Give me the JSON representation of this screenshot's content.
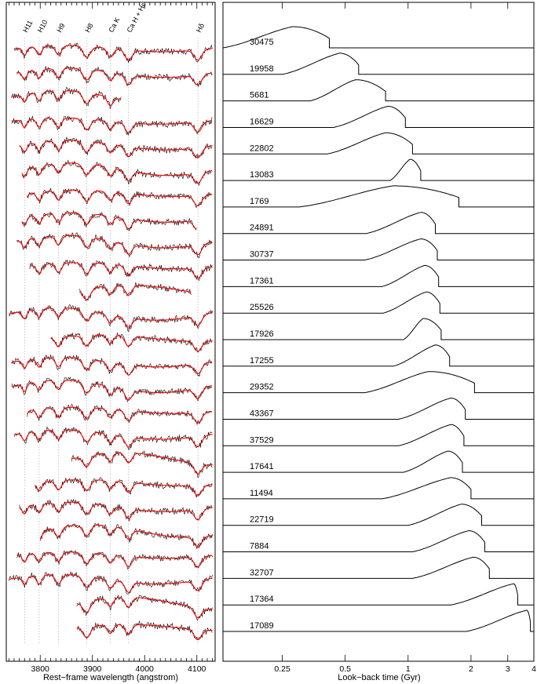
{
  "chart_data": [
    {
      "type": "line",
      "panel": "left",
      "xlabel": "Rest−frame wavelength (angstrom)",
      "xlim": [
        3735,
        4135
      ],
      "xticks": [
        3800,
        3900,
        4000,
        4100
      ],
      "xtick_labels": [
        "3800",
        "3900",
        "4000",
        "4100"
      ],
      "line_markers": [
        {
          "label": "H11",
          "wavelength": 3770
        },
        {
          "label": "H10",
          "wavelength": 3798
        },
        {
          "label": "H9",
          "wavelength": 3835
        },
        {
          "label": "H8",
          "wavelength": 3889
        },
        {
          "label": "Ca K",
          "wavelength": 3934
        },
        {
          "label": "Ca H + Hε",
          "wavelength": 3969
        },
        {
          "label": "Hδ",
          "wavelength": 4102
        }
      ],
      "spectra": [
        {
          "start": 3750,
          "end": 4130
        },
        {
          "start": 3755,
          "end": 4130
        },
        {
          "start": 3745,
          "end": 3955
        },
        {
          "start": 3745,
          "end": 4130
        },
        {
          "start": 3760,
          "end": 4130
        },
        {
          "start": 3765,
          "end": 4130
        },
        {
          "start": 3775,
          "end": 4130
        },
        {
          "start": 3765,
          "end": 4100
        },
        {
          "start": 3755,
          "end": 4130
        },
        {
          "start": 3780,
          "end": 4130
        },
        {
          "start": 3875,
          "end": 4090
        },
        {
          "start": 3740,
          "end": 4130
        },
        {
          "start": 3820,
          "end": 4130
        },
        {
          "start": 3745,
          "end": 4130
        },
        {
          "start": 3745,
          "end": 4130
        },
        {
          "start": 3775,
          "end": 4130
        },
        {
          "start": 3750,
          "end": 4130
        },
        {
          "start": 3860,
          "end": 4130
        },
        {
          "start": 3790,
          "end": 4130
        },
        {
          "start": 3760,
          "end": 4130
        },
        {
          "start": 3800,
          "end": 4130
        },
        {
          "start": 3755,
          "end": 4130
        },
        {
          "start": 3740,
          "end": 4130
        },
        {
          "start": 3870,
          "end": 4130
        },
        {
          "start": 3870,
          "end": 4130
        }
      ],
      "series": [
        {
          "name": "observed",
          "color": "#000000"
        },
        {
          "name": "model",
          "color": "#ff0000"
        }
      ]
    },
    {
      "type": "area",
      "panel": "right",
      "xlabel": "Look−back time (Gyr)",
      "xscale": "log",
      "xlim": [
        0.13,
        4.0
      ],
      "xticks": [
        0.25,
        0.5,
        1,
        2,
        3,
        4
      ],
      "xtick_labels": [
        "0.25",
        "0.5",
        "1",
        "2",
        "3",
        "4"
      ],
      "galaxies": [
        {
          "id": "30475",
          "t_start": 0.13,
          "t_peak": 0.28,
          "t_end": 0.42
        },
        {
          "id": "19958",
          "t_start": 0.25,
          "t_peak": 0.47,
          "t_end": 0.58
        },
        {
          "id": "5681",
          "t_start": 0.34,
          "t_peak": 0.56,
          "t_end": 0.78
        },
        {
          "id": "16629",
          "t_start": 0.44,
          "t_peak": 0.8,
          "t_end": 0.97
        },
        {
          "id": "22802",
          "t_start": 0.41,
          "t_peak": 0.78,
          "t_end": 1.05
        },
        {
          "id": "13083",
          "t_start": 0.82,
          "t_peak": 1.02,
          "t_end": 1.15
        },
        {
          "id": "1769",
          "t_start": 0.3,
          "t_peak": 0.85,
          "t_end": 1.75
        },
        {
          "id": "24891",
          "t_start": 0.63,
          "t_peak": 1.15,
          "t_end": 1.35
        },
        {
          "id": "30737",
          "t_start": 0.62,
          "t_peak": 1.15,
          "t_end": 1.38
        },
        {
          "id": "17361",
          "t_start": 0.75,
          "t_peak": 1.2,
          "t_end": 1.4
        },
        {
          "id": "25526",
          "t_start": 0.76,
          "t_peak": 1.22,
          "t_end": 1.42
        },
        {
          "id": "17926",
          "t_start": 0.95,
          "t_peak": 1.18,
          "t_end": 1.44
        },
        {
          "id": "17255",
          "t_start": 0.85,
          "t_peak": 1.35,
          "t_end": 1.58
        },
        {
          "id": "29352",
          "t_start": 0.62,
          "t_peak": 1.25,
          "t_end": 2.08
        },
        {
          "id": "43367",
          "t_start": 0.9,
          "t_peak": 1.6,
          "t_end": 1.88
        },
        {
          "id": "37529",
          "t_start": 0.9,
          "t_peak": 1.6,
          "t_end": 1.85
        },
        {
          "id": "17641",
          "t_start": 0.95,
          "t_peak": 1.55,
          "t_end": 1.82
        },
        {
          "id": "11494",
          "t_start": 0.75,
          "t_peak": 1.6,
          "t_end": 2.0
        },
        {
          "id": "22719",
          "t_start": 1.0,
          "t_peak": 1.8,
          "t_end": 2.25
        },
        {
          "id": "7884",
          "t_start": 1.05,
          "t_peak": 1.95,
          "t_end": 2.33
        },
        {
          "id": "32707",
          "t_start": 1.05,
          "t_peak": 2.05,
          "t_end": 2.45
        },
        {
          "id": "17364",
          "t_start": 1.6,
          "t_peak": 3.2,
          "t_end": 3.35
        },
        {
          "id": "17089",
          "t_start": 1.9,
          "t_peak": 3.7,
          "t_end": 3.85
        }
      ]
    }
  ]
}
